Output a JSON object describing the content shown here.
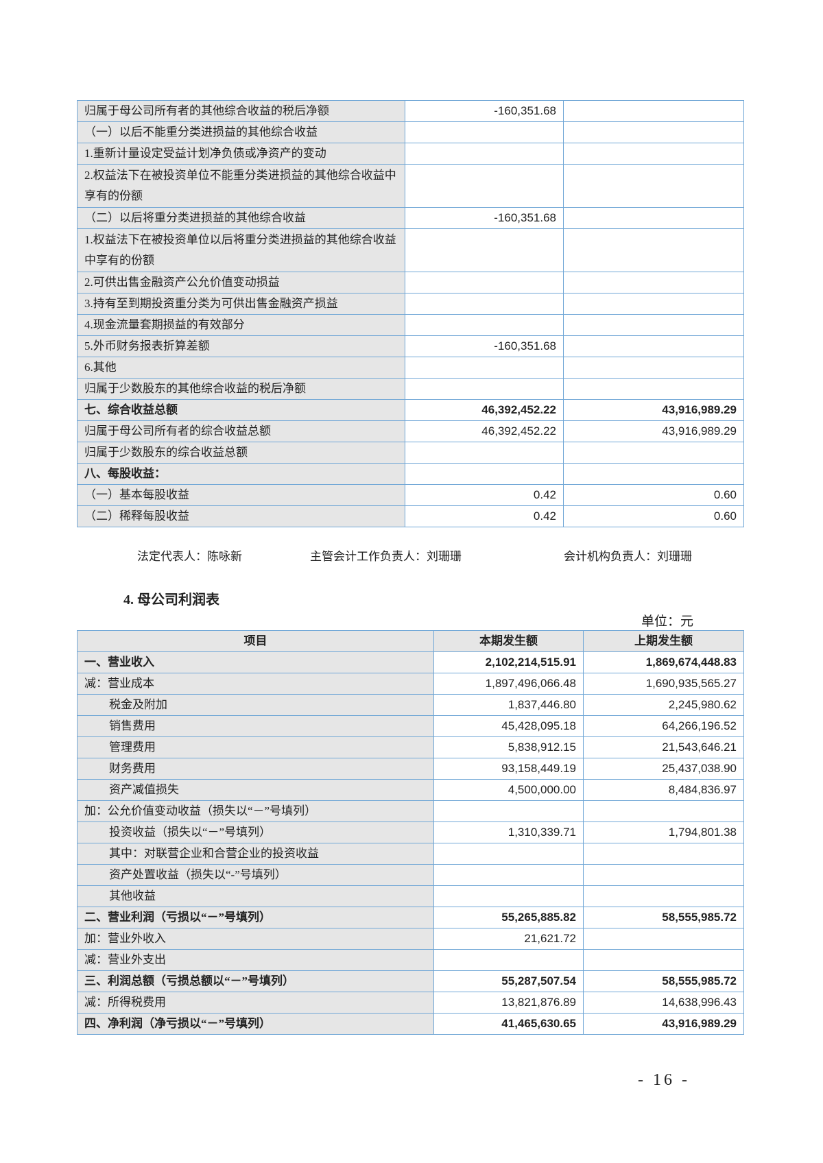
{
  "table1": {
    "rows": [
      {
        "label": "归属于母公司所有者的其他综合收益的税后净额",
        "current": "-160,351.68",
        "prior": ""
      },
      {
        "label": "（一）以后不能重分类进损益的其他综合收益",
        "current": "",
        "prior": ""
      },
      {
        "label": "1.重新计量设定受益计划净负债或净资产的变动",
        "current": "",
        "prior": ""
      },
      {
        "label": "2.权益法下在被投资单位不能重分类进损益的其他综合收益中享有的份额",
        "current": "",
        "prior": "",
        "tall": true
      },
      {
        "label": "（二）以后将重分类进损益的其他综合收益",
        "current": "-160,351.68",
        "prior": ""
      },
      {
        "label": "1.权益法下在被投资单位以后将重分类进损益的其他综合收益中享有的份额",
        "current": "",
        "prior": "",
        "tall": true
      },
      {
        "label": "2.可供出售金融资产公允价值变动损益",
        "current": "",
        "prior": ""
      },
      {
        "label": "3.持有至到期投资重分类为可供出售金融资产损益",
        "current": "",
        "prior": ""
      },
      {
        "label": "4.现金流量套期损益的有效部分",
        "current": "",
        "prior": ""
      },
      {
        "label": "5.外币财务报表折算差额",
        "current": "-160,351.68",
        "prior": ""
      },
      {
        "label": "6.其他",
        "current": "",
        "prior": ""
      },
      {
        "label": "归属于少数股东的其他综合收益的税后净额",
        "current": "",
        "prior": ""
      },
      {
        "label": "七、综合收益总额",
        "current": "46,392,452.22",
        "prior": "43,916,989.29",
        "bold": true
      },
      {
        "label": "归属于母公司所有者的综合收益总额",
        "current": "46,392,452.22",
        "prior": "43,916,989.29"
      },
      {
        "label": "归属于少数股东的综合收益总额",
        "current": "",
        "prior": ""
      },
      {
        "label": "八、每股收益：",
        "current": "",
        "prior": "",
        "bold": true
      },
      {
        "label": "（一）基本每股收益",
        "current": "0.42",
        "prior": "0.60"
      },
      {
        "label": "（二）稀释每股收益",
        "current": "0.42",
        "prior": "0.60"
      }
    ]
  },
  "signatures": {
    "legal_rep": "法定代表人：陈咏新",
    "accounting_head": "主管会计工作负责人：刘珊珊",
    "accounting_dept_head": "会计机构负责人：刘珊珊"
  },
  "section_heading": "4.  母公司利润表",
  "unit": "单位：元",
  "table2": {
    "headers": [
      "项目",
      "本期发生额",
      "上期发生额"
    ],
    "rows": [
      {
        "label": "一、营业收入",
        "current": "2,102,214,515.91",
        "prior": "1,869,674,448.83",
        "bold": true
      },
      {
        "label": "减：营业成本",
        "current": "1,897,496,066.48",
        "prior": "1,690,935,565.27"
      },
      {
        "label": "税金及附加",
        "current": "1,837,446.80",
        "prior": "2,245,980.62",
        "indent": true
      },
      {
        "label": "销售费用",
        "current": "45,428,095.18",
        "prior": "64,266,196.52",
        "indent": true
      },
      {
        "label": "管理费用",
        "current": "5,838,912.15",
        "prior": "21,543,646.21",
        "indent": true
      },
      {
        "label": "财务费用",
        "current": "93,158,449.19",
        "prior": "25,437,038.90",
        "indent": true
      },
      {
        "label": "资产减值损失",
        "current": "4,500,000.00",
        "prior": "8,484,836.97",
        "indent": true
      },
      {
        "label": "加：公允价值变动收益（损失以“－”号填列）",
        "current": "",
        "prior": ""
      },
      {
        "label": "投资收益（损失以“－”号填列）",
        "current": "1,310,339.71",
        "prior": "1,794,801.38",
        "indent": true
      },
      {
        "label": "其中：对联营企业和合营企业的投资收益",
        "current": "",
        "prior": "",
        "indent": true
      },
      {
        "label": "资产处置收益（损失以“-”号填列）",
        "current": "",
        "prior": "",
        "indent": true
      },
      {
        "label": "其他收益",
        "current": "",
        "prior": "",
        "indent": true
      },
      {
        "label": "二、营业利润（亏损以“－”号填列）",
        "current": "55,265,885.82",
        "prior": "58,555,985.72",
        "bold": true
      },
      {
        "label": "加：营业外收入",
        "current": "21,621.72",
        "prior": ""
      },
      {
        "label": "减：营业外支出",
        "current": "",
        "prior": ""
      },
      {
        "label": "三、利润总额（亏损总额以“－”号填列）",
        "current": "55,287,507.54",
        "prior": "58,555,985.72",
        "bold": true
      },
      {
        "label": "减：所得税费用",
        "current": "13,821,876.89",
        "prior": "14,638,996.43"
      },
      {
        "label": "四、净利润（净亏损以“－”号填列）",
        "current": "41,465,630.65",
        "prior": "43,916,989.29",
        "bold": true
      }
    ]
  },
  "page_number": "- 16 -"
}
